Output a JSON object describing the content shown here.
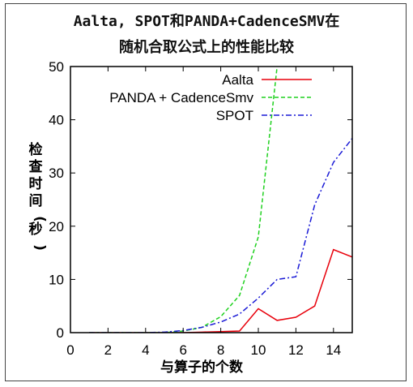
{
  "chart_data": {
    "type": "line",
    "title_line1": "Aalta, SPOT和PANDA+CadenceSMV在",
    "title_line2": "随机合取公式上的性能比较",
    "xlabel": "与算子的个数",
    "ylabel": "检查时间(秒)",
    "xlim": [
      0,
      15
    ],
    "ylim": [
      0,
      50
    ],
    "xticks": [
      0,
      2,
      4,
      6,
      8,
      10,
      12,
      14
    ],
    "yticks": [
      0,
      10,
      20,
      30,
      40,
      50
    ],
    "legend_position": "top-right",
    "series": [
      {
        "name": "Aalta",
        "color": "#e8000b",
        "dash": "solid",
        "x": [
          1,
          2,
          3,
          4,
          5,
          6,
          7,
          8,
          9,
          10,
          11,
          12,
          13,
          14,
          15
        ],
        "y": [
          0,
          0,
          0,
          0,
          0,
          0,
          0.1,
          0.2,
          0.3,
          4.5,
          2.3,
          2.9,
          5.0,
          15.6,
          14.2
        ]
      },
      {
        "name": "PANDA + CadenceSmv",
        "color": "#1fd11f",
        "dash": "dashed",
        "x": [
          1,
          2,
          3,
          4,
          5,
          6,
          7,
          8,
          9,
          10,
          11
        ],
        "y": [
          0,
          0,
          0,
          0,
          0,
          0.3,
          1.0,
          3.0,
          7.0,
          18.0,
          50.0
        ]
      },
      {
        "name": "SPOT",
        "color": "#1a1ad6",
        "dash": "dashdot",
        "x": [
          1,
          2,
          3,
          4,
          5,
          6,
          7,
          8,
          9,
          10,
          11,
          12,
          13,
          14,
          15
        ],
        "y": [
          0,
          0,
          0,
          0,
          0.1,
          0.4,
          1.0,
          2.0,
          3.5,
          6.5,
          10.0,
          10.5,
          24.0,
          32.0,
          36.5
        ]
      }
    ]
  }
}
